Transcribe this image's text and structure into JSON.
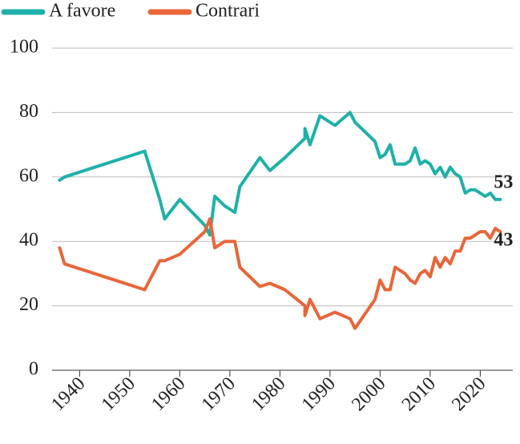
{
  "chart_data": {
    "type": "line",
    "x": [
      1936,
      1937,
      1953,
      1956,
      1957,
      1960,
      1965,
      1966,
      1967,
      1969,
      1971,
      1972,
      1976,
      1978,
      1981,
      1985,
      1985,
      1986,
      1988,
      1991,
      1994,
      1995,
      1999,
      2000,
      2001,
      2002,
      2003,
      2005,
      2006,
      2007,
      2008,
      2009,
      2010,
      2011,
      2012,
      2013,
      2014,
      2015,
      2016,
      2017,
      2018,
      2019,
      2020,
      2021,
      2022,
      2023,
      2024
    ],
    "series": [
      {
        "name": "A favore",
        "color": "#1fb0a9",
        "values": [
          59,
          60,
          68,
          53,
          47,
          53,
          45,
          42,
          54,
          51,
          49,
          57,
          66,
          62,
          66,
          72,
          75,
          70,
          79,
          76,
          80,
          77,
          71,
          66,
          67,
          70,
          64,
          64,
          65,
          69,
          64,
          65,
          64,
          61,
          63,
          60,
          63,
          61,
          60,
          55,
          56,
          56,
          55,
          54,
          55,
          53,
          53
        ]
      },
      {
        "name": "Contrari",
        "color": "#e8663a",
        "values": [
          38,
          33,
          25,
          34,
          34,
          36,
          43,
          47,
          38,
          40,
          40,
          32,
          26,
          27,
          25,
          20,
          17,
          22,
          16,
          18,
          16,
          13,
          22,
          28,
          25,
          25,
          32,
          30,
          28,
          27,
          30,
          31,
          29,
          35,
          32,
          35,
          33,
          37,
          37,
          41,
          41,
          42,
          43,
          43,
          41,
          44,
          43
        ]
      }
    ],
    "xlim": [
      1934.5,
      2026.5
    ],
    "xticks": [
      1940,
      1950,
      1960,
      1970,
      1980,
      1990,
      2000,
      2010,
      2020
    ],
    "ylim": [
      0,
      100
    ],
    "yticks": [
      0,
      20,
      40,
      60,
      80,
      100
    ],
    "grid": true
  }
}
